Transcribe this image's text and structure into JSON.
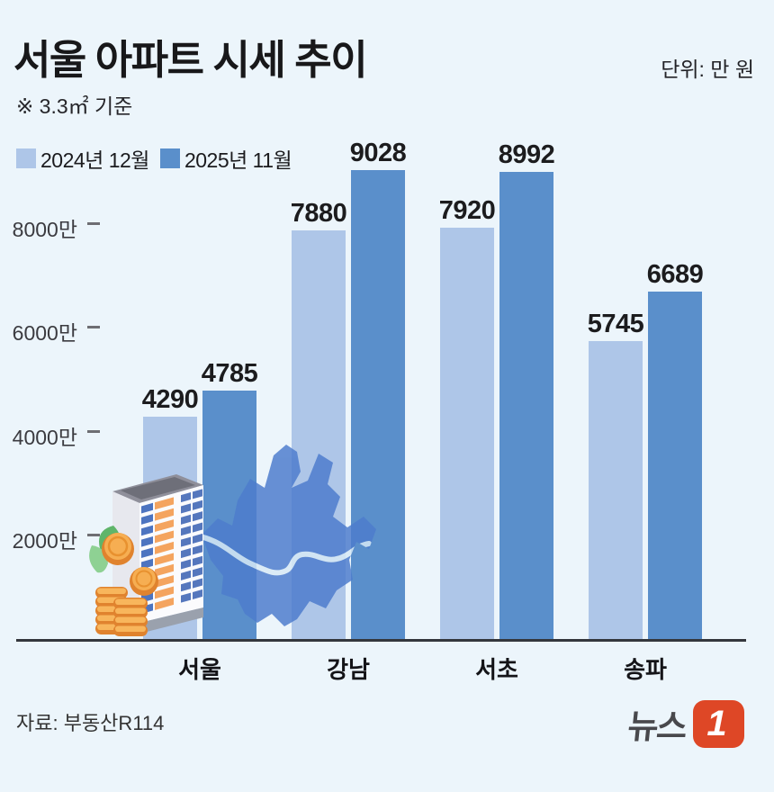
{
  "header": {
    "title": "서울 아파트 시세 추이",
    "unit_label": "단위: 만 원",
    "subtitle": "※ 3.3㎡ 기준"
  },
  "legend": {
    "items": [
      {
        "label": "2024년 12월",
        "color": "#aec6e8"
      },
      {
        "label": "2025년 11월",
        "color": "#5a8fcb"
      }
    ]
  },
  "chart_data": {
    "type": "bar",
    "title": "서울 아파트 시세 추이",
    "subtitle_note": "※ 3.3㎡ 기준",
    "unit": "만 원",
    "categories": [
      "서울",
      "강남",
      "서초",
      "송파"
    ],
    "series": [
      {
        "name": "2024년 12월",
        "color": "#aec6e8",
        "values": [
          4290,
          7880,
          7920,
          5745
        ]
      },
      {
        "name": "2025년 11월",
        "color": "#5a8fcb",
        "values": [
          4785,
          9028,
          8992,
          6689
        ]
      }
    ],
    "y_axis": {
      "ticks": [
        {
          "value": 2000,
          "label": "2000만"
        },
        {
          "value": 4000,
          "label": "4000만"
        },
        {
          "value": 6000,
          "label": "6000만"
        },
        {
          "value": 8000,
          "label": "8000만"
        }
      ],
      "min": 0,
      "max": 9600
    },
    "grid": false,
    "legend_position": "top-left",
    "value_labels": "above-bars"
  },
  "footer": {
    "source": "자료: 부동산R114",
    "logo": {
      "text": "뉴스",
      "badge": "1",
      "badge_color": "#de4726"
    }
  },
  "colors": {
    "background": "#ecf5fb",
    "axis": "#34373d",
    "text": "#1c1c1e",
    "map_blue": "#4d7ccd",
    "river": "#d8eaf6"
  }
}
